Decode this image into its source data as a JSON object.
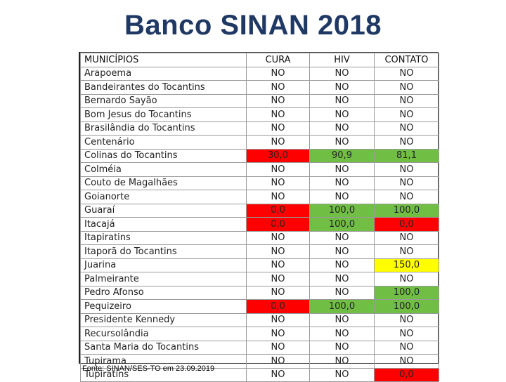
{
  "title": "Banco SINAN 2018",
  "table": {
    "headers": [
      "MUNICÍPIOS",
      "CURA",
      "HIV",
      "CONTATO"
    ],
    "rows": [
      {
        "municipio": "Arapoema",
        "cura": "NO",
        "hiv": "NO",
        "contato": "NO"
      },
      {
        "municipio": "Bandeirantes do Tocantins",
        "cura": "NO",
        "hiv": "NO",
        "contato": "NO"
      },
      {
        "municipio": "Bernardo Sayão",
        "cura": "NO",
        "hiv": "NO",
        "contato": "NO"
      },
      {
        "municipio": "Bom Jesus do Tocantins",
        "cura": "NO",
        "hiv": "NO",
        "contato": "NO"
      },
      {
        "municipio": "Brasilândia do Tocantins",
        "cura": "NO",
        "hiv": "NO",
        "contato": "NO"
      },
      {
        "municipio": "Centenário",
        "cura": "NO",
        "hiv": "NO",
        "contato": "NO"
      },
      {
        "municipio": "Colinas do Tocantins",
        "cura": "30,0",
        "hiv": "90,9",
        "contato": "81,1"
      },
      {
        "municipio": "Colméia",
        "cura": "NO",
        "hiv": "NO",
        "contato": "NO"
      },
      {
        "municipio": "Couto de Magalhães",
        "cura": "NO",
        "hiv": "NO",
        "contato": "NO"
      },
      {
        "municipio": "Goianorte",
        "cura": "NO",
        "hiv": "NO",
        "contato": "NO"
      },
      {
        "municipio": "Guaraí",
        "cura": "0,0",
        "hiv": "100,0",
        "contato": "100,0"
      },
      {
        "municipio": "Itacajá",
        "cura": "0,0",
        "hiv": "100,0",
        "contato": "0,0"
      },
      {
        "municipio": "Itapiratins",
        "cura": "NO",
        "hiv": "NO",
        "contato": "NO"
      },
      {
        "municipio": "Itaporã do Tocantins",
        "cura": "NO",
        "hiv": "NO",
        "contato": "NO"
      },
      {
        "municipio": "Juarina",
        "cura": "NO",
        "hiv": "NO",
        "contato": "150,0"
      },
      {
        "municipio": "Palmeirante",
        "cura": "NO",
        "hiv": "NO",
        "contato": "NO"
      },
      {
        "municipio": "Pedro Afonso",
        "cura": "NO",
        "hiv": "NO",
        "contato": "100,0"
      },
      {
        "municipio": "Pequizeiro",
        "cura": "0,0",
        "hiv": "100,0",
        "contato": "100,0"
      },
      {
        "municipio": "Presidente Kennedy",
        "cura": "NO",
        "hiv": "NO",
        "contato": "NO"
      },
      {
        "municipio": "Recursolândia",
        "cura": "NO",
        "hiv": "NO",
        "contato": "NO"
      },
      {
        "municipio": "Santa Maria do Tocantins",
        "cura": "NO",
        "hiv": "NO",
        "contato": "NO"
      },
      {
        "municipio": "Tupirama",
        "cura": "NO",
        "hiv": "NO",
        "contato": "NO"
      },
      {
        "municipio": "Tupiratins",
        "cura": "NO",
        "hiv": "NO",
        "contato": "0,0"
      }
    ],
    "highlight_colors": {
      "red": "#ff0000",
      "green": "#70bf44",
      "yellow": "#ffff00"
    }
  },
  "source": "Fonte: SINAN/SES-TO em 23.09.2019"
}
